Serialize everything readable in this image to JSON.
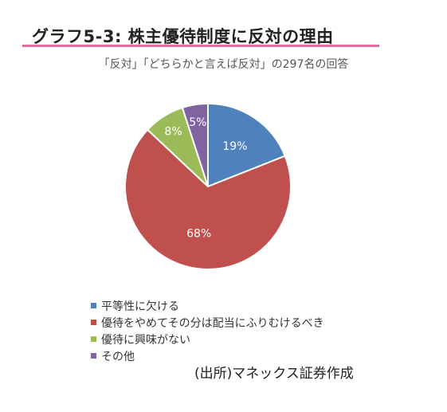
{
  "header": {
    "title": "グラフ5-3: 株主優待制度に反対の理由",
    "accent_color": "#e36ba6"
  },
  "chart_data": {
    "type": "pie",
    "subtitle": "「反対」「どちらかと言えば反対」の297名の回答",
    "slices": [
      {
        "label": "平等性に欠ける",
        "value": 19,
        "display": "19%",
        "color": "#4f81bd"
      },
      {
        "label": "優待をやめてその分は配当にふりむけるべき",
        "value": 68,
        "display": "68%",
        "color": "#c0504d"
      },
      {
        "label": "優待に興味がない",
        "value": 8,
        "display": "8%",
        "color": "#9bbb59"
      },
      {
        "label": "その他",
        "value": 5,
        "display": "5%",
        "color": "#8064a2"
      }
    ],
    "legend_position": "bottom-left"
  },
  "footer": {
    "source": "(出所)マネックス証券作成"
  }
}
